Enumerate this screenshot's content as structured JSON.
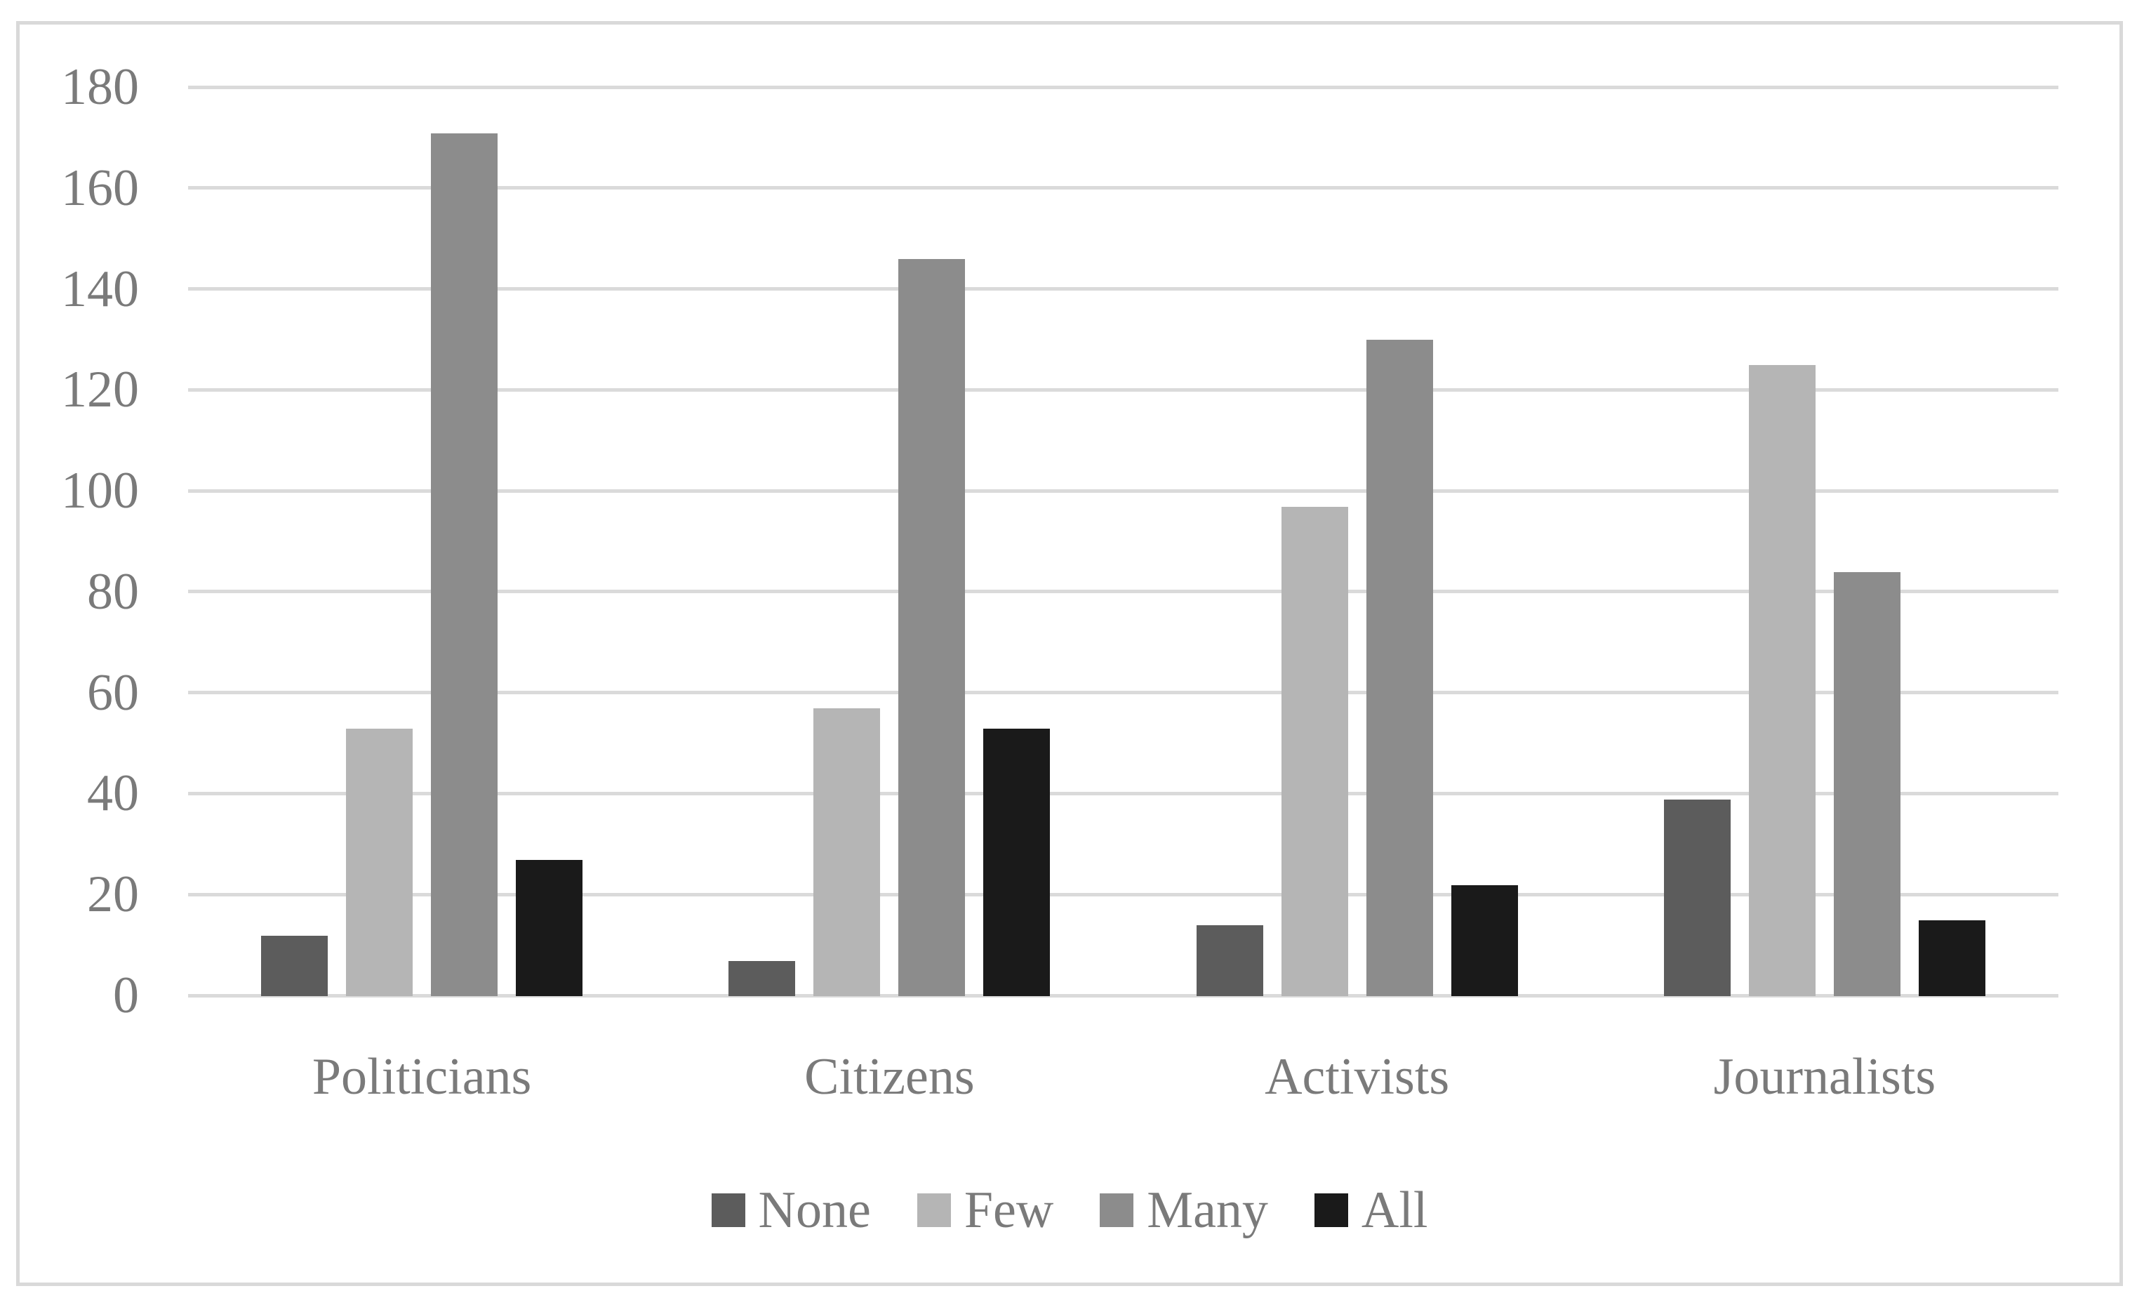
{
  "figure": {
    "background_color": "#ffffff",
    "border_color": "#d9d9d9",
    "grid_color": "#dadada",
    "text_color": "#7a7a7a"
  },
  "chart_data": {
    "type": "bar",
    "title": "",
    "xlabel": "",
    "ylabel": "",
    "categories": [
      "Politicians",
      "Citizens",
      "Activists",
      "Journalists"
    ],
    "series": [
      {
        "name": "None",
        "color": "#5c5c5c",
        "values": [
          12,
          7,
          14,
          39
        ]
      },
      {
        "name": "Few",
        "color": "#b5b5b5",
        "values": [
          53,
          57,
          97,
          125
        ]
      },
      {
        "name": "Many",
        "color": "#8c8c8c",
        "values": [
          171,
          146,
          130,
          84
        ]
      },
      {
        "name": "All",
        "color": "#1a1a1a",
        "values": [
          27,
          53,
          22,
          15
        ]
      }
    ],
    "ylim": [
      0,
      180
    ],
    "ytick_step": 20,
    "ytick_labels": [
      "180",
      "160",
      "140",
      "120",
      "100",
      "80",
      "60",
      "40",
      "20",
      "0"
    ],
    "grid": true,
    "legend_position": "bottom"
  }
}
